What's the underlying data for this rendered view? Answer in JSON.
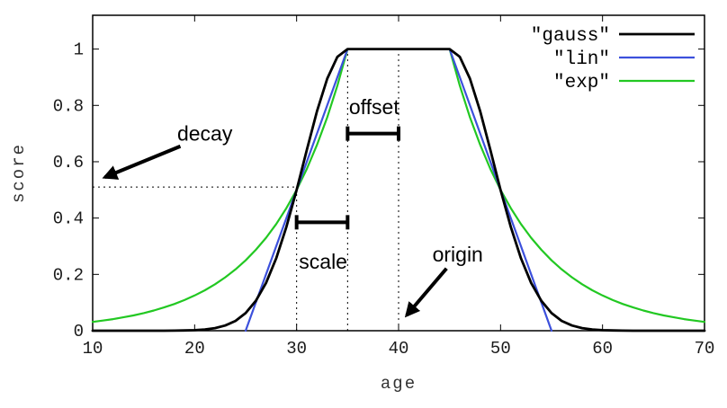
{
  "chart_data": {
    "type": "line",
    "title": "",
    "xlabel": "age",
    "ylabel": "score",
    "xlim": [
      10,
      70
    ],
    "ylim": [
      0,
      1.12
    ],
    "grid": false,
    "legend_position": "top-right-inside",
    "xticks": [
      10,
      20,
      30,
      40,
      50,
      60,
      70
    ],
    "xtick_labels": [
      "10",
      "20",
      "30",
      "40",
      "50",
      "60",
      "70"
    ],
    "yticks": [
      0,
      0.2,
      0.4,
      0.6,
      0.8,
      1
    ],
    "ytick_labels": [
      "0",
      "0.2",
      "0.4",
      "0.6",
      "0.8",
      "1"
    ],
    "series": [
      {
        "name": "\"gauss\"",
        "color": "#000000",
        "width": 2.8,
        "points": [
          [
            10,
            0
          ],
          [
            11,
            0
          ],
          [
            12,
            0
          ],
          [
            13,
            0
          ],
          [
            14,
            0
          ],
          [
            15,
            0
          ],
          [
            16,
            0
          ],
          [
            17,
            0.0001
          ],
          [
            18,
            0.0003
          ],
          [
            19,
            0.0008
          ],
          [
            20,
            0.002
          ],
          [
            21,
            0.0044
          ],
          [
            22,
            0.0092
          ],
          [
            23,
            0.0184
          ],
          [
            24,
            0.0349
          ],
          [
            25,
            0.0625
          ],
          [
            26,
            0.1058
          ],
          [
            27,
            0.1696
          ],
          [
            28,
            0.2571
          ],
          [
            29,
            0.3686
          ],
          [
            30,
            0.5
          ],
          [
            31,
            0.6417
          ],
          [
            32,
            0.7792
          ],
          [
            33,
            0.895
          ],
          [
            34,
            0.9727
          ],
          [
            35,
            1
          ],
          [
            36,
            1
          ],
          [
            37,
            1
          ],
          [
            38,
            1
          ],
          [
            39,
            1
          ],
          [
            40,
            1
          ],
          [
            41,
            1
          ],
          [
            42,
            1
          ],
          [
            43,
            1
          ],
          [
            44,
            1
          ],
          [
            45,
            1
          ],
          [
            46,
            0.9727
          ],
          [
            47,
            0.895
          ],
          [
            48,
            0.7792
          ],
          [
            49,
            0.6417
          ],
          [
            50,
            0.5
          ],
          [
            51,
            0.3686
          ],
          [
            52,
            0.2571
          ],
          [
            53,
            0.1696
          ],
          [
            54,
            0.1058
          ],
          [
            55,
            0.0625
          ],
          [
            56,
            0.0349
          ],
          [
            57,
            0.0184
          ],
          [
            58,
            0.0092
          ],
          [
            59,
            0.0044
          ],
          [
            60,
            0.002
          ],
          [
            61,
            0.0008
          ],
          [
            62,
            0.0003
          ],
          [
            63,
            0.0001
          ],
          [
            64,
            0
          ],
          [
            65,
            0
          ],
          [
            66,
            0
          ],
          [
            67,
            0
          ],
          [
            68,
            0
          ],
          [
            69,
            0
          ],
          [
            70,
            0
          ]
        ]
      },
      {
        "name": "\"lin\"",
        "color": "#3c50dc",
        "width": 2.2,
        "points": [
          [
            25,
            0
          ],
          [
            35,
            1
          ],
          [
            45,
            1
          ],
          [
            55,
            0
          ]
        ]
      },
      {
        "name": "\"exp\"",
        "color": "#22c822",
        "width": 2.2,
        "points": [
          [
            10,
            0.0313
          ],
          [
            11,
            0.0359
          ],
          [
            12,
            0.0412
          ],
          [
            13,
            0.0474
          ],
          [
            14,
            0.0544
          ],
          [
            15,
            0.0625
          ],
          [
            16,
            0.0718
          ],
          [
            17,
            0.0825
          ],
          [
            18,
            0.0947
          ],
          [
            19,
            0.1088
          ],
          [
            20,
            0.125
          ],
          [
            21,
            0.1436
          ],
          [
            22,
            0.1649
          ],
          [
            23,
            0.1895
          ],
          [
            24,
            0.2176
          ],
          [
            25,
            0.25
          ],
          [
            26,
            0.2872
          ],
          [
            27,
            0.3299
          ],
          [
            28,
            0.3789
          ],
          [
            29,
            0.4353
          ],
          [
            30,
            0.5
          ],
          [
            31,
            0.5743
          ],
          [
            32,
            0.6598
          ],
          [
            33,
            0.7579
          ],
          [
            34,
            0.8706
          ],
          [
            35,
            1
          ],
          [
            36,
            1
          ],
          [
            37,
            1
          ],
          [
            38,
            1
          ],
          [
            39,
            1
          ],
          [
            40,
            1
          ],
          [
            41,
            1
          ],
          [
            42,
            1
          ],
          [
            43,
            1
          ],
          [
            44,
            1
          ],
          [
            45,
            1
          ],
          [
            46,
            0.8706
          ],
          [
            47,
            0.7579
          ],
          [
            48,
            0.6598
          ],
          [
            49,
            0.5743
          ],
          [
            50,
            0.5
          ],
          [
            51,
            0.4353
          ],
          [
            52,
            0.3789
          ],
          [
            53,
            0.3299
          ],
          [
            54,
            0.2872
          ],
          [
            55,
            0.25
          ],
          [
            56,
            0.2176
          ],
          [
            57,
            0.1895
          ],
          [
            58,
            0.1649
          ],
          [
            59,
            0.1436
          ],
          [
            60,
            0.125
          ],
          [
            61,
            0.1088
          ],
          [
            62,
            0.0947
          ],
          [
            63,
            0.0825
          ],
          [
            64,
            0.0718
          ],
          [
            65,
            0.0625
          ],
          [
            66,
            0.0544
          ],
          [
            67,
            0.0474
          ],
          [
            68,
            0.0412
          ],
          [
            69,
            0.0359
          ],
          [
            70,
            0.0313
          ]
        ]
      }
    ],
    "guides": [
      {
        "id": "decay-level-line",
        "type": "dashed-h",
        "y": 0.51,
        "x1": 10,
        "x2": 30
      },
      {
        "id": "scale-left-line",
        "type": "dashed-v",
        "x": 30,
        "y1": 0,
        "y2": 0.51
      },
      {
        "id": "offset-left-line",
        "type": "dashed-v",
        "x": 35,
        "y1": 0,
        "y2": 1
      },
      {
        "id": "origin-line",
        "type": "dashed-v",
        "x": 40,
        "y1": 0,
        "y2": 1
      }
    ],
    "annotations": [
      {
        "id": "decay",
        "label": "decay",
        "label_pos": [
          21.0,
          0.7
        ],
        "arrow": {
          "from": [
            18.6,
            0.655
          ],
          "to": [
            11.2,
            0.545
          ]
        }
      },
      {
        "id": "origin",
        "label": "origin",
        "label_pos": [
          45.8,
          0.272
        ],
        "arrow": {
          "from": [
            44.7,
            0.221
          ],
          "to": [
            40.8,
            0.055
          ]
        }
      },
      {
        "id": "offset",
        "label": "offset",
        "label_pos": [
          37.6,
          0.795
        ],
        "bracket": {
          "x1": 35,
          "x2": 40,
          "y": 0.7
        }
      },
      {
        "id": "scale",
        "label": "scale",
        "label_pos": [
          32.6,
          0.245
        ],
        "bracket": {
          "x1": 30,
          "x2": 35,
          "y": 0.385
        }
      }
    ]
  }
}
